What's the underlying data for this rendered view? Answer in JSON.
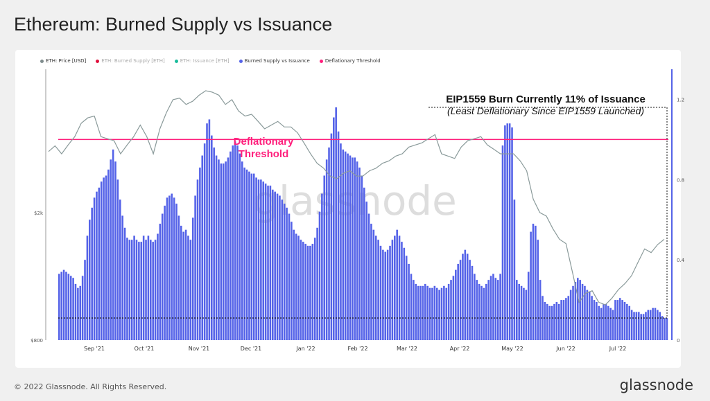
{
  "title": "Ethereum: Burned Supply vs Issuance",
  "footer": {
    "copyright": "© 2022 Glassnode. All Rights Reserved.",
    "brand": "glassnode"
  },
  "watermark": "glassnode",
  "legend": [
    {
      "label": "ETH: Price [USD]",
      "color": "#7f8c8d",
      "dim": false
    },
    {
      "label": "ETH: Burned Supply [ETH]",
      "color": "#e0103c",
      "dim": true
    },
    {
      "label": "ETH: Issuance [ETH]",
      "color": "#1abc9c",
      "dim": true
    },
    {
      "label": "Burned Supply vs Issuance",
      "color": "#5563e8",
      "dim": false
    },
    {
      "label": "Deflationary Threshold",
      "color": "#ff1f7c",
      "dim": false
    }
  ],
  "annotation": {
    "line1": "EIP1559 Burn Currently 11% of Issuance",
    "line2": "(Least Deflationary Since EIP1559 Launched)"
  },
  "threshold_label": [
    "Deflationary",
    "Threshold"
  ],
  "chart_data": {
    "type": "bar",
    "title": "Ethereum: Burned Supply vs Issuance",
    "x_tick_labels": [
      "Sep '21",
      "Oct '21",
      "Nov '21",
      "Dec '21",
      "Jan '22",
      "Feb '22",
      "Mar '22",
      "Apr '22",
      "May '22",
      "Jun '22",
      "Jul '22"
    ],
    "y_right_ticks": [
      "0",
      "0.4",
      "0.8",
      "1.2"
    ],
    "y_right_lim": [
      0,
      1.35
    ],
    "y_left_ticks": [
      "$800",
      "$2k"
    ],
    "y_left_log": true,
    "deflationary_threshold": 1.0,
    "current_ratio": 0.11,
    "series": [
      {
        "name": "Burned Supply vs Issuance",
        "type": "bar",
        "color": "#5563e8",
        "values": [
          0.33,
          0.34,
          0.35,
          0.34,
          0.33,
          0.32,
          0.31,
          0.28,
          0.26,
          0.27,
          0.32,
          0.4,
          0.52,
          0.6,
          0.66,
          0.71,
          0.74,
          0.76,
          0.79,
          0.81,
          0.82,
          0.85,
          0.9,
          0.95,
          0.89,
          0.8,
          0.7,
          0.62,
          0.56,
          0.51,
          0.5,
          0.5,
          0.52,
          0.5,
          0.49,
          0.49,
          0.52,
          0.5,
          0.52,
          0.5,
          0.49,
          0.5,
          0.53,
          0.58,
          0.63,
          0.67,
          0.71,
          0.72,
          0.73,
          0.71,
          0.68,
          0.62,
          0.57,
          0.54,
          0.55,
          0.52,
          0.5,
          0.61,
          0.72,
          0.8,
          0.86,
          0.92,
          0.98,
          1.08,
          1.1,
          1.02,
          0.96,
          0.92,
          0.9,
          0.88,
          0.88,
          0.89,
          0.91,
          0.94,
          0.97,
          0.99,
          0.97,
          0.93,
          0.89,
          0.86,
          0.85,
          0.84,
          0.83,
          0.83,
          0.81,
          0.8,
          0.8,
          0.79,
          0.78,
          0.77,
          0.77,
          0.75,
          0.74,
          0.73,
          0.72,
          0.7,
          0.68,
          0.66,
          0.63,
          0.59,
          0.55,
          0.53,
          0.52,
          0.5,
          0.49,
          0.48,
          0.47,
          0.47,
          0.48,
          0.51,
          0.56,
          0.64,
          0.73,
          0.82,
          0.9,
          0.96,
          1.03,
          1.11,
          1.16,
          1.04,
          0.98,
          0.95,
          0.94,
          0.93,
          0.92,
          0.91,
          0.91,
          0.89,
          0.86,
          0.82,
          0.76,
          0.69,
          0.63,
          0.58,
          0.55,
          0.52,
          0.5,
          0.47,
          0.45,
          0.44,
          0.45,
          0.47,
          0.5,
          0.52,
          0.55,
          0.52,
          0.49,
          0.46,
          0.42,
          0.38,
          0.33,
          0.3,
          0.28,
          0.27,
          0.27,
          0.27,
          0.28,
          0.27,
          0.26,
          0.26,
          0.27,
          0.26,
          0.25,
          0.26,
          0.27,
          0.26,
          0.28,
          0.3,
          0.32,
          0.35,
          0.38,
          0.4,
          0.43,
          0.45,
          0.43,
          0.4,
          0.37,
          0.33,
          0.3,
          0.28,
          0.27,
          0.26,
          0.28,
          0.3,
          0.32,
          0.33,
          0.31,
          0.3,
          0.33,
          0.97,
          1.07,
          1.08,
          1.08,
          1.06,
          0.7,
          0.3,
          0.28,
          0.27,
          0.26,
          0.25,
          0.34,
          0.54,
          0.58,
          0.57,
          0.5,
          0.3,
          0.22,
          0.19,
          0.18,
          0.17,
          0.17,
          0.18,
          0.19,
          0.18,
          0.2,
          0.2,
          0.21,
          0.22,
          0.25,
          0.27,
          0.29,
          0.31,
          0.3,
          0.28,
          0.27,
          0.25,
          0.24,
          0.22,
          0.2,
          0.19,
          0.17,
          0.16,
          0.18,
          0.18,
          0.17,
          0.16,
          0.15,
          0.2,
          0.2,
          0.21,
          0.2,
          0.19,
          0.18,
          0.17,
          0.15,
          0.14,
          0.14,
          0.14,
          0.13,
          0.13,
          0.14,
          0.15,
          0.15,
          0.16,
          0.16,
          0.15,
          0.14,
          0.12,
          0.11,
          0.11
        ]
      },
      {
        "name": "ETH: Price [USD]",
        "type": "line",
        "color": "#7f8c8d",
        "values": [
          3100,
          3230,
          3050,
          3250,
          3450,
          3800,
          3950,
          4000,
          3450,
          3400,
          3350,
          3050,
          3250,
          3450,
          3750,
          3450,
          3050,
          3650,
          4100,
          4500,
          4550,
          4350,
          4450,
          4650,
          4800,
          4750,
          4650,
          4350,
          4500,
          4150,
          4000,
          4050,
          3850,
          3650,
          3750,
          3850,
          3700,
          3700,
          3550,
          3300,
          3050,
          2850,
          2750,
          2600,
          2550,
          2650,
          2700,
          2600,
          2600,
          2700,
          2750,
          2850,
          2900,
          3000,
          3050,
          3200,
          3250,
          3300,
          3400,
          3500,
          3050,
          3000,
          2950,
          3200,
          3350,
          3400,
          3450,
          3250,
          3150,
          3050,
          3050,
          3050,
          2900,
          2700,
          2200,
          2000,
          1950,
          1780,
          1650,
          1600,
          1300,
          1050,
          1120,
          1140,
          1050,
          1030,
          1080,
          1150,
          1200,
          1270,
          1400,
          1540,
          1500,
          1590,
          1650
        ]
      }
    ]
  }
}
